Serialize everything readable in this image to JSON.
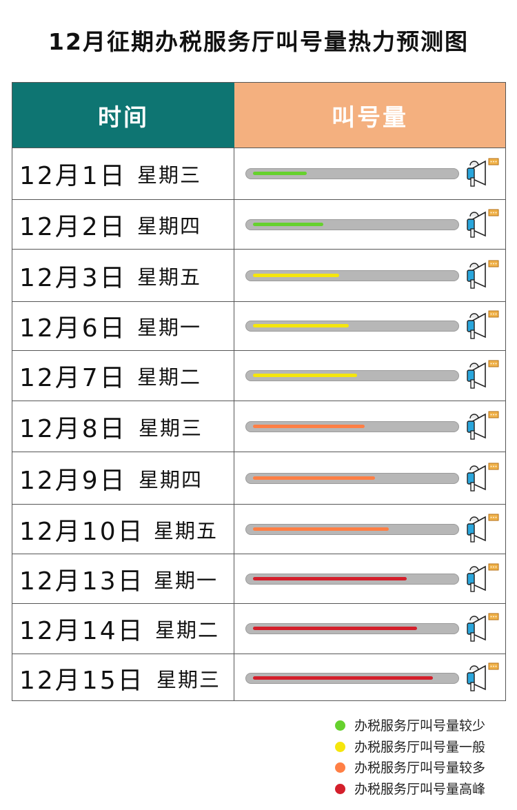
{
  "title": "12月征期办税服务厅叫号量热力预测图",
  "header": {
    "time": "时间",
    "volume": "叫号量"
  },
  "colors": {
    "low": "#66d12e",
    "normal": "#f5e60d",
    "high": "#ff7f45",
    "peak": "#d41f2b",
    "header_time_bg": "#0e7572",
    "header_volume_bg": "#f4b07f",
    "track": "#b7b7b7"
  },
  "rows": [
    {
      "date": "12月1日",
      "weekday": "星期三",
      "level": "low",
      "value": 0.27
    },
    {
      "date": "12月2日",
      "weekday": "星期四",
      "level": "low",
      "value": 0.35
    },
    {
      "date": "12月3日",
      "weekday": "星期五",
      "level": "normal",
      "value": 0.43
    },
    {
      "date": "12月6日",
      "weekday": "星期一",
      "level": "normal",
      "value": 0.48
    },
    {
      "date": "12月7日",
      "weekday": "星期二",
      "level": "normal",
      "value": 0.52
    },
    {
      "date": "12月8日",
      "weekday": "星期三",
      "level": "high",
      "value": 0.56
    },
    {
      "date": "12月9日",
      "weekday": "星期四",
      "level": "high",
      "value": 0.61
    },
    {
      "date": "12月10日",
      "weekday": "星期五",
      "level": "high",
      "value": 0.68
    },
    {
      "date": "12月13日",
      "weekday": "星期一",
      "level": "peak",
      "value": 0.77
    },
    {
      "date": "12月14日",
      "weekday": "星期二",
      "level": "peak",
      "value": 0.82
    },
    {
      "date": "12月15日",
      "weekday": "星期三",
      "level": "peak",
      "value": 0.9
    }
  ],
  "legend": [
    {
      "level": "low",
      "label": "办税服务厅叫号量较少"
    },
    {
      "level": "normal",
      "label": "办税服务厅叫号量一般"
    },
    {
      "level": "high",
      "label": "办税服务厅叫号量较多"
    },
    {
      "level": "peak",
      "label": "办税服务厅叫号量高峰"
    }
  ],
  "chart_data": {
    "type": "bar",
    "title": "12月征期办税服务厅叫号量热力预测图",
    "categories": [
      "12月1日 星期三",
      "12月2日 星期四",
      "12月3日 星期五",
      "12月6日 星期一",
      "12月7日 星期二",
      "12月8日 星期三",
      "12月9日 星期四",
      "12月10日 星期五",
      "12月13日 星期一",
      "12月14日 星期二",
      "12月15日 星期三"
    ],
    "values": [
      0.27,
      0.35,
      0.43,
      0.48,
      0.52,
      0.56,
      0.61,
      0.68,
      0.77,
      0.82,
      0.9
    ],
    "levels": [
      "较少",
      "较少",
      "一般",
      "一般",
      "一般",
      "较多",
      "较多",
      "较多",
      "高峰",
      "高峰",
      "高峰"
    ],
    "ylabel": "叫号量",
    "legend_position": "bottom-right"
  }
}
